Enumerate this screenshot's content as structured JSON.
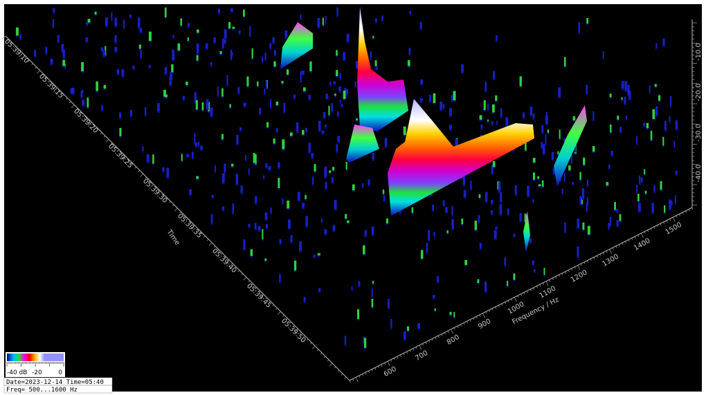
{
  "plot": {
    "time_axis": {
      "title": "Time",
      "ticks": [
        "05:39:10",
        "05:39:15",
        "05:39:20",
        "05:39:25",
        "05:39:30",
        "05:39:35",
        "05:39:40",
        "05:39:45",
        "05:39:50"
      ]
    },
    "frequency_axis": {
      "title": "Frequency / Hz",
      "ticks": [
        600,
        700,
        800,
        900,
        1000,
        1100,
        1200,
        1300,
        1400,
        1500
      ]
    },
    "level_axis": {
      "ticks": [
        "-10.0",
        "-20.0",
        "-30.0",
        "-40.0"
      ]
    }
  },
  "colorbar": {
    "labels": [
      "-40 dB",
      "-20",
      "0"
    ]
  },
  "info": {
    "lines": [
      "Date=2023-12-14 Time=05:40",
      "Freq= 500...1600 Hz"
    ]
  }
}
